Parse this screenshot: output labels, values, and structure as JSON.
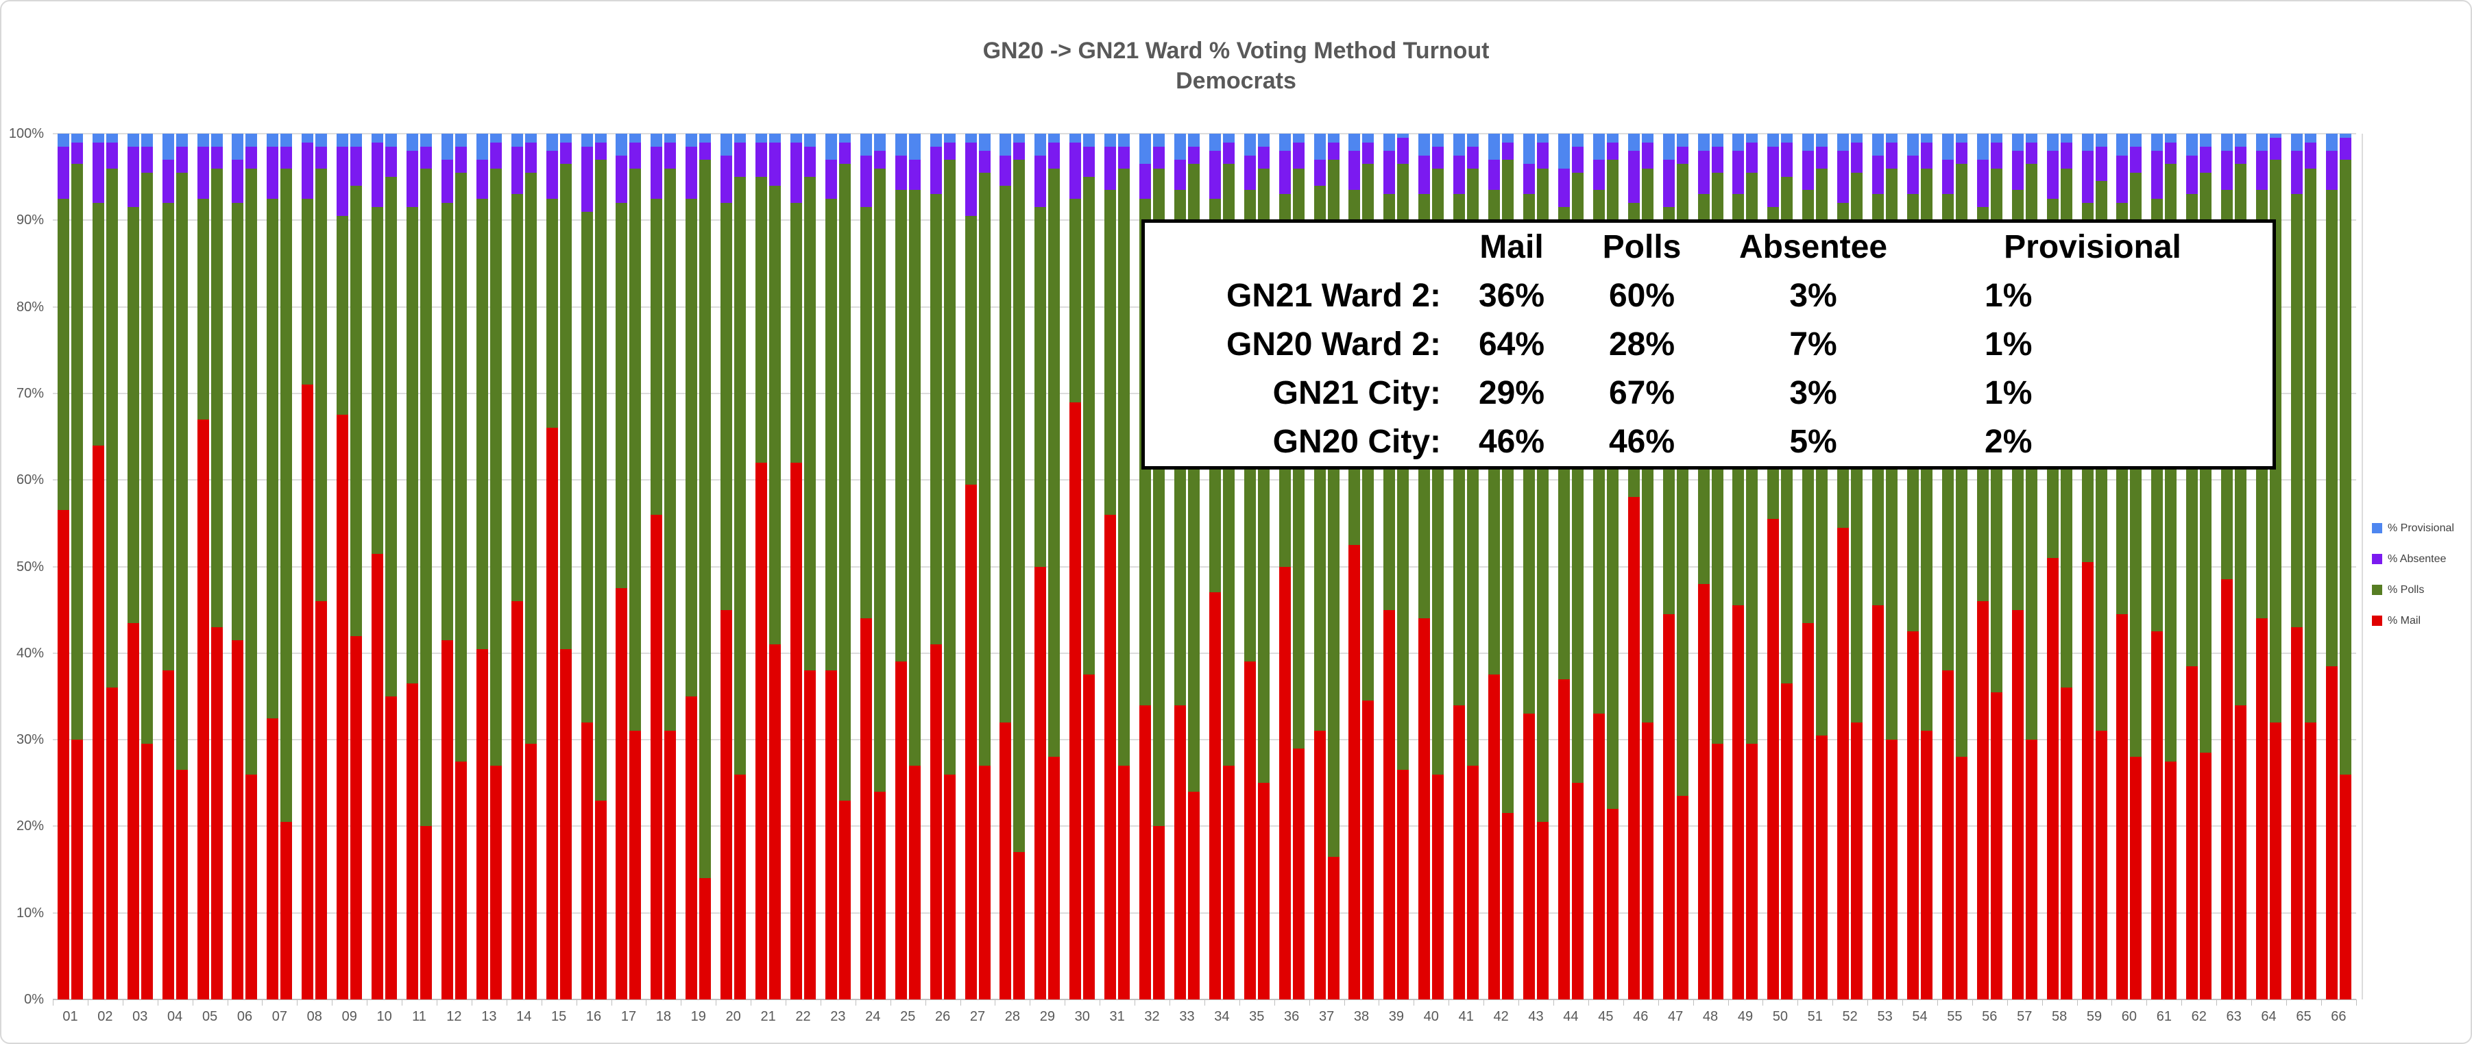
{
  "title": {
    "line1": "GN20 -> GN21 Ward % Voting Method Turnout",
    "line2": "Democrats"
  },
  "colors": {
    "mail": "#E00000",
    "polls": "#567D23",
    "absentee": "#7B1AF0",
    "provisional": "#4E86F0",
    "axis_text": "#595959",
    "gridline": "#DCDCDC",
    "callout_border": "#000000"
  },
  "legend": {
    "items": [
      {
        "label": "% Provisional",
        "color_key": "provisional"
      },
      {
        "label": "% Absentee",
        "color_key": "absentee"
      },
      {
        "label": "% Polls",
        "color_key": "polls"
      },
      {
        "label": "% Mail",
        "color_key": "mail"
      }
    ]
  },
  "y_axis": {
    "ticks": [
      "100%",
      "90%",
      "80%",
      "70%",
      "60%",
      "50%",
      "40%",
      "30%",
      "20%",
      "10%",
      "0%"
    ]
  },
  "callout": {
    "headers": [
      "Mail",
      "Polls",
      "Absentee",
      "Provisional"
    ],
    "rows": [
      {
        "label": "GN21 Ward 2:",
        "values": [
          "36%",
          "60%",
          "3%",
          "1%"
        ]
      },
      {
        "label": "GN20 Ward 2:",
        "values": [
          "64%",
          "28%",
          "7%",
          "1%"
        ]
      },
      {
        "label": "GN21 City:",
        "values": [
          "29%",
          "67%",
          "3%",
          "1%"
        ]
      },
      {
        "label": "GN20 City:",
        "values": [
          "46%",
          "46%",
          "5%",
          "2%"
        ]
      }
    ]
  },
  "chart_data": {
    "type": "bar",
    "stacked": true,
    "stack_unit": "percent",
    "ylim": [
      0,
      100
    ],
    "grid": true,
    "title": "GN20 -> GN21 Ward % Voting Method Turnout — Democrats",
    "series_order": [
      "mail",
      "polls",
      "absentee",
      "provisional"
    ],
    "bars_per_category": [
      "GN20",
      "GN21"
    ],
    "legend_position": "right",
    "wards": [
      {
        "id": "01",
        "gn20": [
          56.5,
          36,
          6,
          1.5
        ],
        "gn21": [
          30,
          66.5,
          2.5,
          1
        ]
      },
      {
        "id": "02",
        "gn20": [
          64,
          28,
          7,
          1
        ],
        "gn21": [
          36,
          60,
          3,
          1
        ]
      },
      {
        "id": "03",
        "gn20": [
          43.5,
          48,
          7,
          1.5
        ],
        "gn21": [
          29.5,
          66,
          3,
          1.5
        ]
      },
      {
        "id": "04",
        "gn20": [
          38,
          54,
          5,
          3
        ],
        "gn21": [
          26.5,
          69,
          3,
          1.5
        ]
      },
      {
        "id": "05",
        "gn20": [
          67,
          25.5,
          6,
          1.5
        ],
        "gn21": [
          43,
          53,
          2.5,
          1.5
        ]
      },
      {
        "id": "06",
        "gn20": [
          41.5,
          50.5,
          5,
          3
        ],
        "gn21": [
          26,
          70,
          2.5,
          1.5
        ]
      },
      {
        "id": "07",
        "gn20": [
          32.5,
          60,
          6,
          1.5
        ],
        "gn21": [
          20.5,
          75.5,
          2.5,
          1.5
        ]
      },
      {
        "id": "08",
        "gn20": [
          71,
          21.5,
          6.5,
          1
        ],
        "gn21": [
          46,
          50,
          2.5,
          1.5
        ]
      },
      {
        "id": "09",
        "gn20": [
          67.5,
          23,
          8,
          1.5
        ],
        "gn21": [
          42,
          52,
          4.5,
          1.5
        ]
      },
      {
        "id": "10",
        "gn20": [
          51.5,
          40,
          7.5,
          1
        ],
        "gn21": [
          35,
          60,
          3.5,
          1.5
        ]
      },
      {
        "id": "11",
        "gn20": [
          36.5,
          55,
          6.5,
          2
        ],
        "gn21": [
          20,
          76,
          2.5,
          1.5
        ]
      },
      {
        "id": "12",
        "gn20": [
          41.5,
          50.5,
          5,
          3
        ],
        "gn21": [
          27.5,
          68,
          3,
          1.5
        ]
      },
      {
        "id": "13",
        "gn20": [
          40.5,
          52,
          4.5,
          3
        ],
        "gn21": [
          27,
          69,
          3,
          1
        ]
      },
      {
        "id": "14",
        "gn20": [
          46,
          47,
          5.5,
          1.5
        ],
        "gn21": [
          29.5,
          66,
          3.5,
          1
        ]
      },
      {
        "id": "15",
        "gn20": [
          66,
          26.5,
          5.5,
          2
        ],
        "gn21": [
          40.5,
          56,
          2.5,
          1
        ]
      },
      {
        "id": "16",
        "gn20": [
          32,
          59,
          7.5,
          1.5
        ],
        "gn21": [
          23,
          74,
          2,
          1
        ]
      },
      {
        "id": "17",
        "gn20": [
          47.5,
          44.5,
          5.5,
          2.5
        ],
        "gn21": [
          31,
          65,
          3,
          1
        ]
      },
      {
        "id": "18",
        "gn20": [
          56,
          36.5,
          6,
          1.5
        ],
        "gn21": [
          31,
          65,
          3,
          1
        ]
      },
      {
        "id": "19",
        "gn20": [
          35,
          57.5,
          6,
          1.5
        ],
        "gn21": [
          14,
          83,
          2,
          1
        ]
      },
      {
        "id": "20",
        "gn20": [
          45,
          47,
          5.5,
          2.5
        ],
        "gn21": [
          26,
          69,
          4,
          1
        ]
      },
      {
        "id": "21",
        "gn20": [
          62,
          33,
          4,
          1
        ],
        "gn21": [
          41,
          53,
          5,
          1
        ]
      },
      {
        "id": "22",
        "gn20": [
          62,
          30,
          7,
          1
        ],
        "gn21": [
          38,
          57,
          3.5,
          1.5
        ]
      },
      {
        "id": "23",
        "gn20": [
          38,
          54.5,
          4.5,
          3
        ],
        "gn21": [
          23,
          73.5,
          2.5,
          1
        ]
      },
      {
        "id": "24",
        "gn20": [
          44,
          47.5,
          6,
          2.5
        ],
        "gn21": [
          24,
          72,
          2,
          2
        ]
      },
      {
        "id": "25",
        "gn20": [
          39,
          54.5,
          4,
          2.5
        ],
        "gn21": [
          27,
          66.5,
          3.5,
          3
        ]
      },
      {
        "id": "26",
        "gn20": [
          41,
          52,
          5.5,
          1.5
        ],
        "gn21": [
          26,
          71,
          2,
          1
        ]
      },
      {
        "id": "27",
        "gn20": [
          59.5,
          31,
          8.5,
          1
        ],
        "gn21": [
          27,
          68.5,
          2.5,
          2
        ]
      },
      {
        "id": "28",
        "gn20": [
          32,
          62,
          3.5,
          2.5
        ],
        "gn21": [
          17,
          80,
          2,
          1
        ]
      },
      {
        "id": "29",
        "gn20": [
          50,
          41.5,
          6,
          2.5
        ],
        "gn21": [
          28,
          68,
          3,
          1
        ]
      },
      {
        "id": "30",
        "gn20": [
          69,
          23.5,
          6.5,
          1
        ],
        "gn21": [
          37.5,
          57.5,
          3.5,
          1.5
        ]
      },
      {
        "id": "31",
        "gn20": [
          56,
          37.5,
          5,
          1.5
        ],
        "gn21": [
          27,
          69,
          2.5,
          1.5
        ]
      },
      {
        "id": "32",
        "gn20": [
          34,
          58.5,
          4,
          3.5
        ],
        "gn21": [
          20,
          76,
          2.5,
          1.5
        ]
      },
      {
        "id": "33",
        "gn20": [
          34,
          59.5,
          3.5,
          3
        ],
        "gn21": [
          24,
          72.5,
          2,
          1.5
        ]
      },
      {
        "id": "34",
        "gn20": [
          47,
          45.5,
          5.5,
          2
        ],
        "gn21": [
          27,
          69.5,
          2.5,
          1
        ]
      },
      {
        "id": "35",
        "gn20": [
          39,
          54.5,
          4,
          2.5
        ],
        "gn21": [
          25,
          71,
          2.5,
          1.5
        ]
      },
      {
        "id": "36",
        "gn20": [
          50,
          43,
          5,
          2
        ],
        "gn21": [
          29,
          67,
          3,
          1
        ]
      },
      {
        "id": "37",
        "gn20": [
          31,
          63,
          3,
          3
        ],
        "gn21": [
          16.5,
          80.5,
          2,
          1
        ]
      },
      {
        "id": "38",
        "gn20": [
          52.5,
          41,
          4.5,
          2
        ],
        "gn21": [
          34.5,
          62,
          2.5,
          1
        ]
      },
      {
        "id": "39",
        "gn20": [
          45,
          48,
          5,
          2
        ],
        "gn21": [
          26.5,
          70,
          3,
          0.5
        ]
      },
      {
        "id": "40",
        "gn20": [
          44,
          49,
          4.5,
          2.5
        ],
        "gn21": [
          26,
          70,
          2.5,
          1.5
        ]
      },
      {
        "id": "41",
        "gn20": [
          34,
          59,
          4.5,
          2.5
        ],
        "gn21": [
          27,
          69,
          2.5,
          1.5
        ]
      },
      {
        "id": "42",
        "gn20": [
          37.5,
          56,
          3.5,
          3
        ],
        "gn21": [
          21.5,
          75.5,
          2,
          1
        ]
      },
      {
        "id": "43",
        "gn20": [
          33,
          60,
          3.5,
          3.5
        ],
        "gn21": [
          20.5,
          75.5,
          3,
          1
        ]
      },
      {
        "id": "44",
        "gn20": [
          37,
          54.5,
          4.5,
          4
        ],
        "gn21": [
          25,
          70.5,
          3,
          1.5
        ]
      },
      {
        "id": "45",
        "gn20": [
          33,
          60.5,
          3.5,
          3
        ],
        "gn21": [
          22,
          75,
          2,
          1
        ]
      },
      {
        "id": "46",
        "gn20": [
          58,
          34,
          6,
          2
        ],
        "gn21": [
          32,
          64,
          3,
          1
        ]
      },
      {
        "id": "47",
        "gn20": [
          44.5,
          47,
          5.5,
          3
        ],
        "gn21": [
          23.5,
          73,
          2,
          1.5
        ]
      },
      {
        "id": "48",
        "gn20": [
          48,
          45,
          5,
          2
        ],
        "gn21": [
          29.5,
          66,
          3,
          1.5
        ]
      },
      {
        "id": "49",
        "gn20": [
          45.5,
          47.5,
          5,
          2
        ],
        "gn21": [
          29.5,
          66,
          3.5,
          1
        ]
      },
      {
        "id": "50",
        "gn20": [
          55.5,
          36,
          7,
          1.5
        ],
        "gn21": [
          36.5,
          58.5,
          4,
          1
        ]
      },
      {
        "id": "51",
        "gn20": [
          43.5,
          50,
          4.5,
          2
        ],
        "gn21": [
          30.5,
          65.5,
          2.5,
          1.5
        ]
      },
      {
        "id": "52",
        "gn20": [
          54.5,
          37.5,
          6,
          2
        ],
        "gn21": [
          32,
          63.5,
          3.5,
          1
        ]
      },
      {
        "id": "53",
        "gn20": [
          45.5,
          47.5,
          4.5,
          2.5
        ],
        "gn21": [
          30,
          66,
          3,
          1
        ]
      },
      {
        "id": "54",
        "gn20": [
          42.5,
          50.5,
          4.5,
          2.5
        ],
        "gn21": [
          31,
          65,
          3,
          1
        ]
      },
      {
        "id": "55",
        "gn20": [
          38,
          55,
          4,
          3
        ],
        "gn21": [
          28,
          68.5,
          2.5,
          1
        ]
      },
      {
        "id": "56",
        "gn20": [
          46,
          45.5,
          5.5,
          3
        ],
        "gn21": [
          35.5,
          60.5,
          3,
          1
        ]
      },
      {
        "id": "57",
        "gn20": [
          45,
          48.5,
          4.5,
          2
        ],
        "gn21": [
          30,
          66.5,
          2.5,
          1
        ]
      },
      {
        "id": "58",
        "gn20": [
          51,
          41.5,
          5.5,
          2
        ],
        "gn21": [
          36,
          60,
          3,
          1
        ]
      },
      {
        "id": "59",
        "gn20": [
          50.5,
          41.5,
          6,
          2
        ],
        "gn21": [
          31,
          63.5,
          4,
          1.5
        ]
      },
      {
        "id": "60",
        "gn20": [
          44.5,
          47.5,
          5.5,
          2.5
        ],
        "gn21": [
          28,
          67.5,
          3,
          1.5
        ]
      },
      {
        "id": "61",
        "gn20": [
          42.5,
          50,
          5.5,
          2
        ],
        "gn21": [
          27.5,
          69,
          2.5,
          1
        ]
      },
      {
        "id": "62",
        "gn20": [
          38.5,
          54.5,
          4.5,
          2.5
        ],
        "gn21": [
          28.5,
          67,
          3,
          1.5
        ]
      },
      {
        "id": "63",
        "gn20": [
          48.5,
          45,
          4.5,
          2
        ],
        "gn21": [
          34,
          62.5,
          2,
          1.5
        ]
      },
      {
        "id": "64",
        "gn20": [
          44,
          49.5,
          4.5,
          2
        ],
        "gn21": [
          32,
          65,
          2.5,
          0.5
        ]
      },
      {
        "id": "65",
        "gn20": [
          43,
          50,
          5,
          2
        ],
        "gn21": [
          32,
          64,
          3,
          1
        ]
      },
      {
        "id": "66",
        "gn20": [
          38.5,
          55,
          4.5,
          2
        ],
        "gn21": [
          26,
          71,
          2.5,
          0.5
        ]
      }
    ]
  }
}
